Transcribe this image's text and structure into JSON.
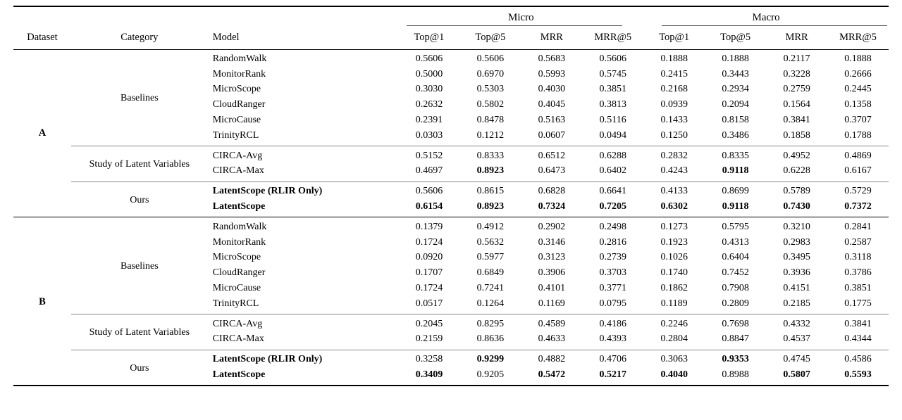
{
  "table": {
    "groups": [
      {
        "label": "Micro"
      },
      {
        "label": "Macro"
      }
    ],
    "columns": [
      "Dataset",
      "Category",
      "Model",
      "Top@1",
      "Top@5",
      "MRR",
      "MRR@5",
      "Top@1",
      "Top@5",
      "MRR",
      "MRR@5"
    ],
    "datasets": [
      {
        "name": "A",
        "groups": [
          {
            "category": "Baselines",
            "rows": [
              {
                "model": "RandomWalk",
                "model_bold": false,
                "values": [
                  "0.5606",
                  "0.5606",
                  "0.5683",
                  "0.5606",
                  "0.1888",
                  "0.1888",
                  "0.2117",
                  "0.1888"
                ],
                "bold": [
                  false,
                  false,
                  false,
                  false,
                  false,
                  false,
                  false,
                  false
                ]
              },
              {
                "model": "MonitorRank",
                "model_bold": false,
                "values": [
                  "0.5000",
                  "0.6970",
                  "0.5993",
                  "0.5745",
                  "0.2415",
                  "0.3443",
                  "0.3228",
                  "0.2666"
                ],
                "bold": [
                  false,
                  false,
                  false,
                  false,
                  false,
                  false,
                  false,
                  false
                ]
              },
              {
                "model": "MicroScope",
                "model_bold": false,
                "values": [
                  "0.3030",
                  "0.5303",
                  "0.4030",
                  "0.3851",
                  "0.2168",
                  "0.2934",
                  "0.2759",
                  "0.2445"
                ],
                "bold": [
                  false,
                  false,
                  false,
                  false,
                  false,
                  false,
                  false,
                  false
                ]
              },
              {
                "model": "CloudRanger",
                "model_bold": false,
                "values": [
                  "0.2632",
                  "0.5802",
                  "0.4045",
                  "0.3813",
                  "0.0939",
                  "0.2094",
                  "0.1564",
                  "0.1358"
                ],
                "bold": [
                  false,
                  false,
                  false,
                  false,
                  false,
                  false,
                  false,
                  false
                ]
              },
              {
                "model": "MicroCause",
                "model_bold": false,
                "values": [
                  "0.2391",
                  "0.8478",
                  "0.5163",
                  "0.5116",
                  "0.1433",
                  "0.8158",
                  "0.3841",
                  "0.3707"
                ],
                "bold": [
                  false,
                  false,
                  false,
                  false,
                  false,
                  false,
                  false,
                  false
                ]
              },
              {
                "model": "TrinityRCL",
                "model_bold": false,
                "values": [
                  "0.0303",
                  "0.1212",
                  "0.0607",
                  "0.0494",
                  "0.1250",
                  "0.3486",
                  "0.1858",
                  "0.1788"
                ],
                "bold": [
                  false,
                  false,
                  false,
                  false,
                  false,
                  false,
                  false,
                  false
                ]
              }
            ]
          },
          {
            "category": "Study of Latent Variables",
            "rows": [
              {
                "model": "CIRCA-Avg",
                "model_bold": false,
                "values": [
                  "0.5152",
                  "0.8333",
                  "0.6512",
                  "0.6288",
                  "0.2832",
                  "0.8335",
                  "0.4952",
                  "0.4869"
                ],
                "bold": [
                  false,
                  false,
                  false,
                  false,
                  false,
                  false,
                  false,
                  false
                ]
              },
              {
                "model": "CIRCA-Max",
                "model_bold": false,
                "values": [
                  "0.4697",
                  "0.8923",
                  "0.6473",
                  "0.6402",
                  "0.4243",
                  "0.9118",
                  "0.6228",
                  "0.6167"
                ],
                "bold": [
                  false,
                  true,
                  false,
                  false,
                  false,
                  true,
                  false,
                  false
                ]
              }
            ]
          },
          {
            "category": "Ours",
            "rows": [
              {
                "model": "LatentScope (RLIR Only)",
                "model_bold": true,
                "values": [
                  "0.5606",
                  "0.8615",
                  "0.6828",
                  "0.6641",
                  "0.4133",
                  "0.8699",
                  "0.5789",
                  "0.5729"
                ],
                "bold": [
                  false,
                  false,
                  false,
                  false,
                  false,
                  false,
                  false,
                  false
                ]
              },
              {
                "model": "LatentScope",
                "model_bold": true,
                "values": [
                  "0.6154",
                  "0.8923",
                  "0.7324",
                  "0.7205",
                  "0.6302",
                  "0.9118",
                  "0.7430",
                  "0.7372"
                ],
                "bold": [
                  true,
                  true,
                  true,
                  true,
                  true,
                  true,
                  true,
                  true
                ]
              }
            ]
          }
        ]
      },
      {
        "name": "B",
        "groups": [
          {
            "category": "Baselines",
            "rows": [
              {
                "model": "RandomWalk",
                "model_bold": false,
                "values": [
                  "0.1379",
                  "0.4912",
                  "0.2902",
                  "0.2498",
                  "0.1273",
                  "0.5795",
                  "0.3210",
                  "0.2841"
                ],
                "bold": [
                  false,
                  false,
                  false,
                  false,
                  false,
                  false,
                  false,
                  false
                ]
              },
              {
                "model": "MonitorRank",
                "model_bold": false,
                "values": [
                  "0.1724",
                  "0.5632",
                  "0.3146",
                  "0.2816",
                  "0.1923",
                  "0.4313",
                  "0.2983",
                  "0.2587"
                ],
                "bold": [
                  false,
                  false,
                  false,
                  false,
                  false,
                  false,
                  false,
                  false
                ]
              },
              {
                "model": "MicroScope",
                "model_bold": false,
                "values": [
                  "0.0920",
                  "0.5977",
                  "0.3123",
                  "0.2739",
                  "0.1026",
                  "0.6404",
                  "0.3495",
                  "0.3118"
                ],
                "bold": [
                  false,
                  false,
                  false,
                  false,
                  false,
                  false,
                  false,
                  false
                ]
              },
              {
                "model": "CloudRanger",
                "model_bold": false,
                "values": [
                  "0.1707",
                  "0.6849",
                  "0.3906",
                  "0.3703",
                  "0.1740",
                  "0.7452",
                  "0.3936",
                  "0.3786"
                ],
                "bold": [
                  false,
                  false,
                  false,
                  false,
                  false,
                  false,
                  false,
                  false
                ]
              },
              {
                "model": "MicroCause",
                "model_bold": false,
                "values": [
                  "0.1724",
                  "0.7241",
                  "0.4101",
                  "0.3771",
                  "0.1862",
                  "0.7908",
                  "0.4151",
                  "0.3851"
                ],
                "bold": [
                  false,
                  false,
                  false,
                  false,
                  false,
                  false,
                  false,
                  false
                ]
              },
              {
                "model": "TrinityRCL",
                "model_bold": false,
                "values": [
                  "0.0517",
                  "0.1264",
                  "0.1169",
                  "0.0795",
                  "0.1189",
                  "0.2809",
                  "0.2185",
                  "0.1775"
                ],
                "bold": [
                  false,
                  false,
                  false,
                  false,
                  false,
                  false,
                  false,
                  false
                ]
              }
            ]
          },
          {
            "category": "Study of Latent Variables",
            "rows": [
              {
                "model": "CIRCA-Avg",
                "model_bold": false,
                "values": [
                  "0.2045",
                  "0.8295",
                  "0.4589",
                  "0.4186",
                  "0.2246",
                  "0.7698",
                  "0.4332",
                  "0.3841"
                ],
                "bold": [
                  false,
                  false,
                  false,
                  false,
                  false,
                  false,
                  false,
                  false
                ]
              },
              {
                "model": "CIRCA-Max",
                "model_bold": false,
                "values": [
                  "0.2159",
                  "0.8636",
                  "0.4633",
                  "0.4393",
                  "0.2804",
                  "0.8847",
                  "0.4537",
                  "0.4344"
                ],
                "bold": [
                  false,
                  false,
                  false,
                  false,
                  false,
                  false,
                  false,
                  false
                ]
              }
            ]
          },
          {
            "category": "Ours",
            "rows": [
              {
                "model": "LatentScope (RLIR Only)",
                "model_bold": true,
                "values": [
                  "0.3258",
                  "0.9299",
                  "0.4882",
                  "0.4706",
                  "0.3063",
                  "0.9353",
                  "0.4745",
                  "0.4586"
                ],
                "bold": [
                  false,
                  true,
                  false,
                  false,
                  false,
                  true,
                  false,
                  false
                ]
              },
              {
                "model": "LatentScope",
                "model_bold": true,
                "values": [
                  "0.3409",
                  "0.9205",
                  "0.5472",
                  "0.5217",
                  "0.4040",
                  "0.8988",
                  "0.5807",
                  "0.5593"
                ],
                "bold": [
                  true,
                  false,
                  true,
                  true,
                  true,
                  false,
                  true,
                  true
                ]
              }
            ]
          }
        ]
      }
    ]
  }
}
